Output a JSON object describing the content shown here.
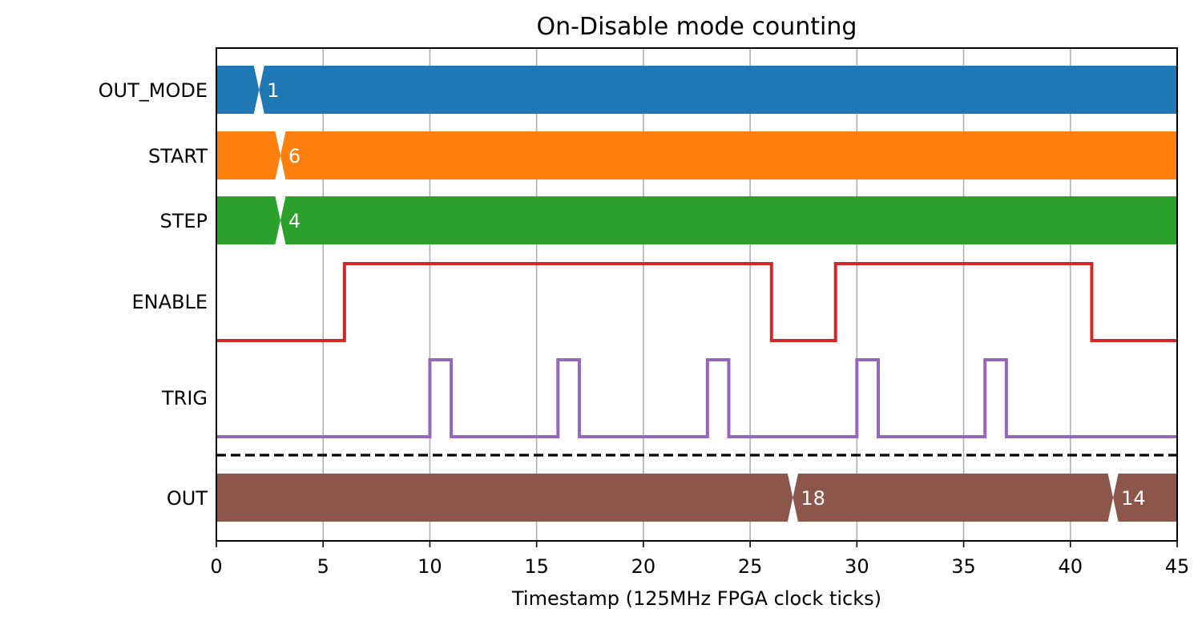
{
  "chart_data": {
    "type": "timing-diagram",
    "title": "On-Disable mode counting",
    "xlabel": "Timestamp (125MHz FPGA clock ticks)",
    "xlim": [
      0,
      45
    ],
    "xticks": [
      0,
      5,
      10,
      15,
      20,
      25,
      30,
      35,
      40,
      45
    ],
    "grid": "vertical",
    "separator_after": "TRIG",
    "signals": [
      {
        "name": "OUT_MODE",
        "kind": "bus",
        "color": "#1f77b4",
        "segments": [
          {
            "start": 0,
            "end": 2,
            "label": ""
          },
          {
            "start": 2,
            "end": 45,
            "label": "1"
          }
        ]
      },
      {
        "name": "START",
        "kind": "bus",
        "color": "#ff7f0e",
        "segments": [
          {
            "start": 0,
            "end": 3,
            "label": ""
          },
          {
            "start": 3,
            "end": 45,
            "label": "6"
          }
        ]
      },
      {
        "name": "STEP",
        "kind": "bus",
        "color": "#2ca02c",
        "segments": [
          {
            "start": 0,
            "end": 3,
            "label": ""
          },
          {
            "start": 3,
            "end": 45,
            "label": "4"
          }
        ]
      },
      {
        "name": "ENABLE",
        "kind": "digital",
        "color": "#d62728",
        "initial": 0,
        "transitions": [
          {
            "t": 6,
            "v": 1
          },
          {
            "t": 26,
            "v": 0
          },
          {
            "t": 29,
            "v": 1
          },
          {
            "t": 41,
            "v": 0
          }
        ]
      },
      {
        "name": "TRIG",
        "kind": "digital",
        "color": "#9467bd",
        "initial": 0,
        "transitions": [
          {
            "t": 10,
            "v": 1
          },
          {
            "t": 11,
            "v": 0
          },
          {
            "t": 16,
            "v": 1
          },
          {
            "t": 17,
            "v": 0
          },
          {
            "t": 23,
            "v": 1
          },
          {
            "t": 24,
            "v": 0
          },
          {
            "t": 30,
            "v": 1
          },
          {
            "t": 31,
            "v": 0
          },
          {
            "t": 36,
            "v": 1
          },
          {
            "t": 37,
            "v": 0
          }
        ]
      },
      {
        "name": "OUT",
        "kind": "bus",
        "color": "#8c564b",
        "segments": [
          {
            "start": 0,
            "end": 27,
            "label": ""
          },
          {
            "start": 27,
            "end": 42,
            "label": "18"
          },
          {
            "start": 42,
            "end": 45,
            "label": "14"
          }
        ]
      }
    ]
  }
}
